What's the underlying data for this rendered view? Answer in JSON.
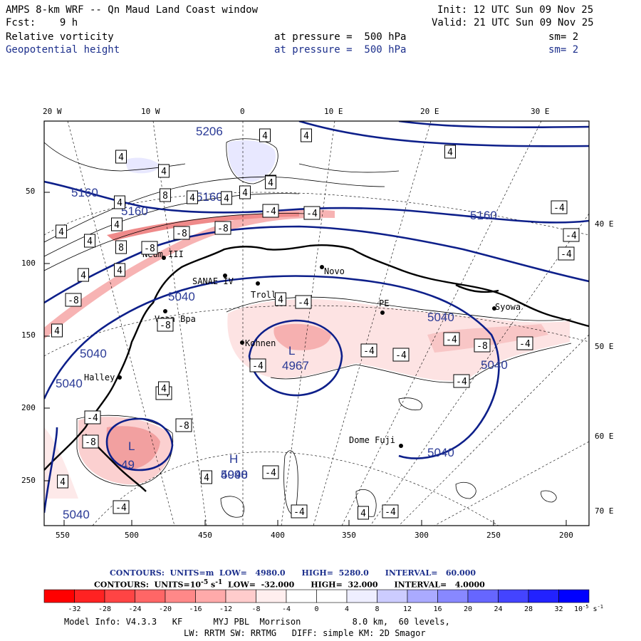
{
  "header": {
    "title": "AMPS 8-km WRF -- Qn Maud Land Coast window",
    "init": "Init: 12 UTC Sun 09 Nov 25",
    "fcst": "Fcst:    9 h",
    "valid": "Valid: 21 UTC Sun 09 Nov 25",
    "field1_name": "Relative vorticity",
    "field1_level": "at pressure =  500 hPa",
    "field1_sm": "sm= 2",
    "field2_name": "Geopotential height",
    "field2_level": "at pressure =  500 hPa",
    "field2_sm": "sm= 2"
  },
  "axes": {
    "top_lon": [
      "20 W",
      "10 W",
      "0",
      "10 E",
      "20 E",
      "30 E"
    ],
    "left_grid": [
      "50",
      "100",
      "150",
      "200",
      "250"
    ],
    "bottom_grid": [
      "550",
      "500",
      "450",
      "400",
      "350",
      "300",
      "250",
      "200"
    ],
    "right_lat": [
      "40 E",
      "50 E",
      "60 E",
      "70 E"
    ]
  },
  "stations": [
    "Neum III",
    "SANAE IV",
    "Troll",
    "Novo",
    "PE",
    "Syowa",
    "Kohnen",
    "Halley",
    "Dome Fuji",
    "Vesa Bpa"
  ],
  "height_labels": [
    "5206",
    "5160",
    "5160",
    "5160",
    "5160",
    "5040",
    "5040",
    "5040",
    "5040",
    "5040",
    "5040",
    "5040",
    "5040",
    "4967",
    "4998",
    "49"
  ],
  "centers": {
    "low1": "L",
    "low2": "L",
    "high1": "H"
  },
  "vort_boxes": [
    "4",
    "4",
    "4",
    "4",
    "4",
    "4",
    "8",
    "4",
    "4",
    "4",
    "8",
    "4",
    "4",
    "-4",
    "-4",
    "-4",
    "-8",
    "-8",
    "4",
    "4",
    "8",
    "-8",
    "4",
    "4",
    "-8",
    "-8",
    "4",
    "4",
    "-4",
    "-4",
    "-4",
    "-4",
    "-8",
    "-4",
    "-4",
    "-4",
    "-4",
    "-4",
    "-4",
    "-4",
    "-8",
    "-4",
    "-4",
    "-4",
    "-8",
    "4",
    "4",
    "4",
    "-4",
    "4",
    "4",
    "4"
  ],
  "footer": {
    "height_contours": "CONTOURS:  UNITS=m  LOW=   4980.0      HIGH=  5280.0      INTERVAL=   60.000",
    "vort_contours_a": "CONTOURS:  UNITS=10",
    "vort_contours_exp": "-5",
    "vort_contours_b": " s",
    "vort_contours_exp2": "-1",
    "vort_contours_c": "  LOW=  -32.000      HIGH=  32.000      INTERVAL=   4.0000",
    "colorbar_labels": [
      "-32",
      "-28",
      "-24",
      "-20",
      "-16",
      "-12",
      "-8",
      "-4",
      "0",
      "4",
      "8",
      "12",
      "16",
      "20",
      "24",
      "28",
      "32"
    ],
    "colorbar_unit": "10",
    "colorbar_unit_exp": "-5",
    "colorbar_unit_s": " s",
    "colorbar_unit_exp2": "-1",
    "colorbar_colors": [
      "#ff0000",
      "#ff2222",
      "#ff4444",
      "#ff6666",
      "#ff8888",
      "#ffaaaa",
      "#ffcccc",
      "#ffeeee",
      "#ffffff",
      "#ffffff",
      "#eeeeff",
      "#ccccff",
      "#aaaaff",
      "#8888ff",
      "#6666ff",
      "#4444ff",
      "#2222ff",
      "#0000ff"
    ],
    "model_info": "Model Info: V4.3.3   KF      MYJ PBL  Morrison          8.0 km,  60 levels,",
    "model_info2": "LW: RRTM SW: RRTMG   DIFF: simple KM: 2D Smagor"
  }
}
